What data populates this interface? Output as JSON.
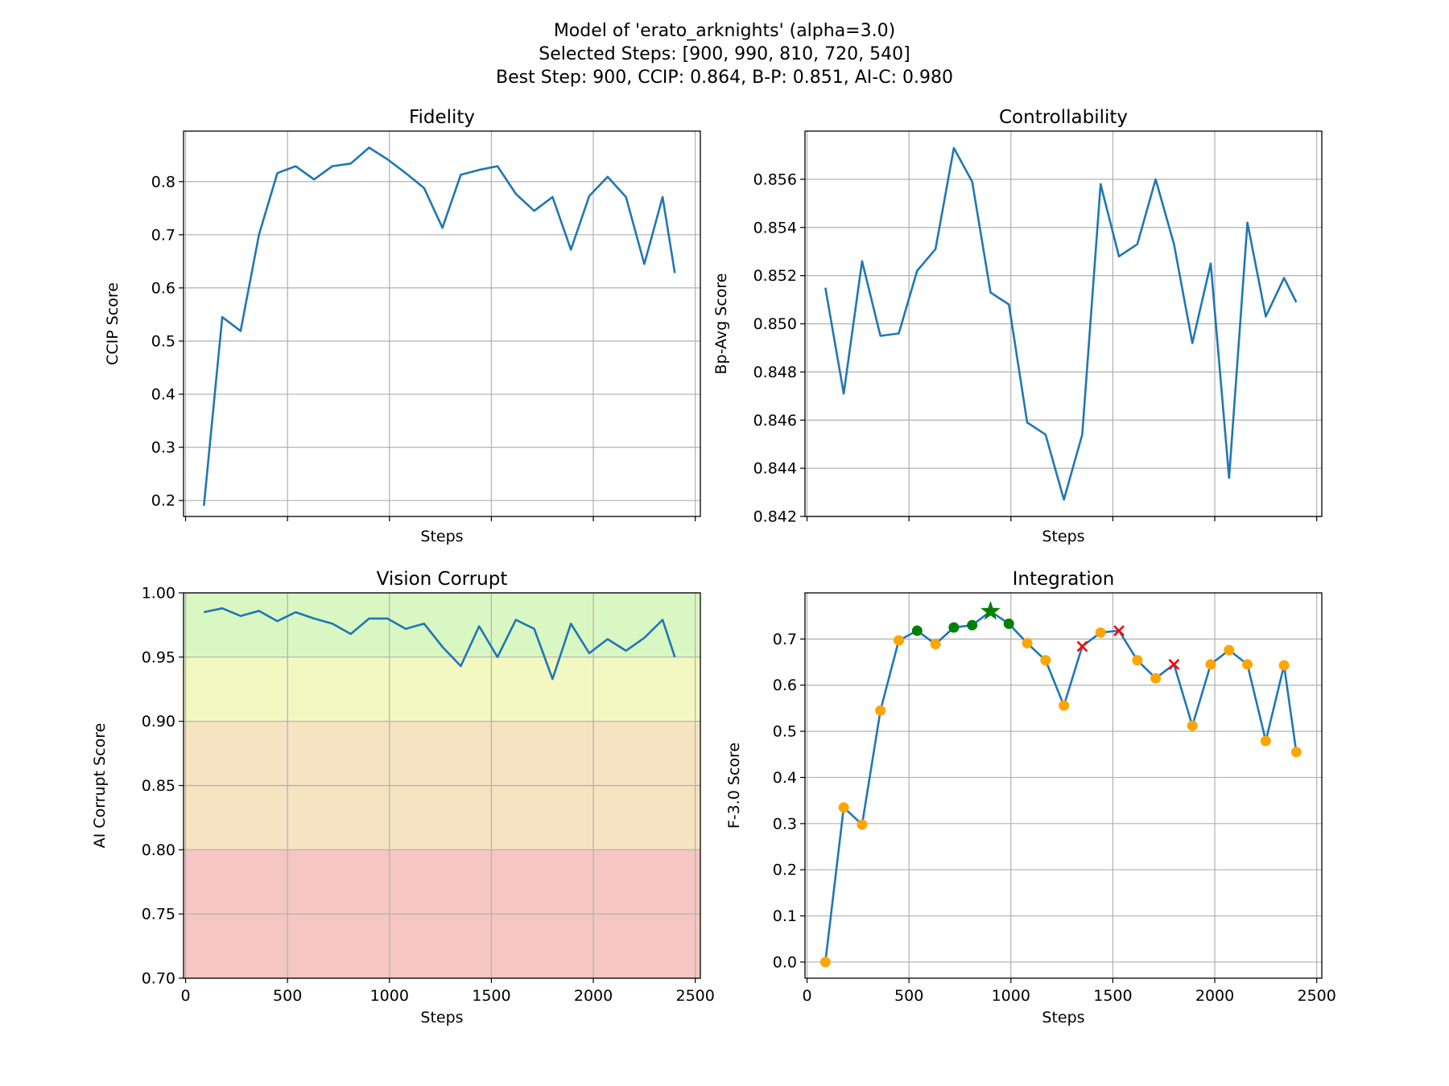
{
  "figure": {
    "title_lines": [
      "Model of 'erato_arknights' (alpha=3.0)",
      "Selected Steps: [900, 990, 810, 720, 540]",
      "Best Step: 900, CCIP: 0.864, B-P: 0.851, AI-C: 0.980"
    ]
  },
  "colors": {
    "line": "#1f77b4",
    "marker_default": "#ffa500",
    "marker_selected": "#008000",
    "marker_excluded": "#ff0000",
    "band_good": "#d9f7c3",
    "band_ok": "#f3f8c1",
    "band_warn": "#f5e3c2",
    "band_bad": "#f5c6c2"
  },
  "chart_data": [
    {
      "id": "fidelity",
      "type": "line",
      "title": "Fidelity",
      "xlabel": "Steps",
      "ylabel": "CCIP Score",
      "xlim": [
        -10,
        2525
      ],
      "ylim": [
        0.17,
        0.895
      ],
      "xticks": [
        0,
        500,
        1000,
        1500,
        2000,
        2500
      ],
      "show_xtick_labels": false,
      "yticks": [
        0.2,
        0.3,
        0.4,
        0.5,
        0.6,
        0.7,
        0.8
      ],
      "ytick_labels": [
        "0.2",
        "0.3",
        "0.4",
        "0.5",
        "0.6",
        "0.7",
        "0.8"
      ],
      "grid": true,
      "x": [
        90,
        180,
        270,
        360,
        450,
        540,
        630,
        720,
        810,
        900,
        990,
        1080,
        1170,
        1260,
        1350,
        1440,
        1530,
        1620,
        1710,
        1800,
        1890,
        1980,
        2070,
        2160,
        2250,
        2340,
        2400
      ],
      "y": [
        0.19,
        0.545,
        0.519,
        0.7,
        0.816,
        0.829,
        0.804,
        0.829,
        0.834,
        0.864,
        0.842,
        0.816,
        0.788,
        0.713,
        0.813,
        0.822,
        0.829,
        0.777,
        0.745,
        0.771,
        0.672,
        0.773,
        0.809,
        0.771,
        0.645,
        0.771,
        0.628
      ]
    },
    {
      "id": "controllability",
      "type": "line",
      "title": "Controllability",
      "xlabel": "Steps",
      "ylabel": "Bp-Avg Score",
      "xlim": [
        -10,
        2525
      ],
      "ylim": [
        0.842,
        0.858
      ],
      "xticks": [
        0,
        500,
        1000,
        1500,
        2000,
        2500
      ],
      "show_xtick_labels": false,
      "yticks": [
        0.842,
        0.844,
        0.846,
        0.848,
        0.85,
        0.852,
        0.854,
        0.856
      ],
      "ytick_labels": [
        "0.842",
        "0.844",
        "0.846",
        "0.848",
        "0.850",
        "0.852",
        "0.854",
        "0.856"
      ],
      "grid": true,
      "x": [
        90,
        180,
        270,
        360,
        450,
        540,
        630,
        720,
        810,
        900,
        990,
        1080,
        1170,
        1260,
        1350,
        1440,
        1530,
        1620,
        1710,
        1800,
        1890,
        1980,
        2070,
        2160,
        2250,
        2340,
        2400
      ],
      "y": [
        0.8515,
        0.8471,
        0.8526,
        0.8495,
        0.8496,
        0.8522,
        0.8531,
        0.8573,
        0.8559,
        0.8513,
        0.8508,
        0.8459,
        0.8454,
        0.8427,
        0.8454,
        0.8558,
        0.8528,
        0.8533,
        0.856,
        0.8533,
        0.8492,
        0.8525,
        0.8436,
        0.8542,
        0.8503,
        0.8519,
        0.8509
      ]
    },
    {
      "id": "vision-corrupt",
      "type": "line",
      "title": "Vision Corrupt",
      "xlabel": "Steps",
      "ylabel": "AI Corrupt Score",
      "xlim": [
        -10,
        2525
      ],
      "ylim": [
        0.7,
        1.0
      ],
      "xticks": [
        0,
        500,
        1000,
        1500,
        2000,
        2500
      ],
      "xtick_labels": [
        "0",
        "500",
        "1000",
        "1500",
        "2000",
        "2500"
      ],
      "show_xtick_labels": true,
      "yticks": [
        0.7,
        0.75,
        0.8,
        0.85,
        0.9,
        0.95,
        1.0
      ],
      "ytick_labels": [
        "0.70",
        "0.75",
        "0.80",
        "0.85",
        "0.90",
        "0.95",
        "1.00"
      ],
      "grid": true,
      "bands": [
        {
          "from": 0.95,
          "to": 1.0,
          "color_key": "band_good"
        },
        {
          "from": 0.9,
          "to": 0.95,
          "color_key": "band_ok"
        },
        {
          "from": 0.8,
          "to": 0.9,
          "color_key": "band_warn"
        },
        {
          "from": 0.7,
          "to": 0.8,
          "color_key": "band_bad"
        }
      ],
      "x": [
        90,
        180,
        270,
        360,
        450,
        540,
        630,
        720,
        810,
        900,
        990,
        1080,
        1170,
        1260,
        1350,
        1440,
        1530,
        1620,
        1710,
        1800,
        1890,
        1980,
        2070,
        2160,
        2250,
        2340,
        2400
      ],
      "y": [
        0.985,
        0.988,
        0.982,
        0.986,
        0.978,
        0.985,
        0.98,
        0.976,
        0.968,
        0.98,
        0.98,
        0.972,
        0.976,
        0.958,
        0.943,
        0.974,
        0.95,
        0.979,
        0.972,
        0.933,
        0.976,
        0.953,
        0.964,
        0.955,
        0.965,
        0.979,
        0.95
      ]
    },
    {
      "id": "integration",
      "type": "line",
      "title": "Integration",
      "xlabel": "Steps",
      "ylabel": "F-3.0 Score",
      "xlim": [
        -10,
        2525
      ],
      "ylim": [
        -0.035,
        0.8
      ],
      "xticks": [
        0,
        500,
        1000,
        1500,
        2000,
        2500
      ],
      "xtick_labels": [
        "0",
        "500",
        "1000",
        "1500",
        "2000",
        "2500"
      ],
      "show_xtick_labels": true,
      "yticks": [
        0.0,
        0.1,
        0.2,
        0.3,
        0.4,
        0.5,
        0.6,
        0.7
      ],
      "ytick_labels": [
        "0.0",
        "0.1",
        "0.2",
        "0.3",
        "0.4",
        "0.5",
        "0.6",
        "0.7"
      ],
      "grid": true,
      "x": [
        90,
        180,
        270,
        360,
        450,
        540,
        630,
        720,
        810,
        900,
        990,
        1080,
        1170,
        1260,
        1350,
        1440,
        1530,
        1620,
        1710,
        1800,
        1890,
        1980,
        2070,
        2160,
        2250,
        2340,
        2400
      ],
      "y": [
        0.0,
        0.335,
        0.298,
        0.545,
        0.697,
        0.718,
        0.689,
        0.725,
        0.73,
        0.76,
        0.733,
        0.691,
        0.654,
        0.556,
        0.684,
        0.714,
        0.718,
        0.654,
        0.615,
        0.645,
        0.512,
        0.645,
        0.676,
        0.645,
        0.479,
        0.643,
        0.455
      ],
      "markers": [
        "circle",
        "circle",
        "circle",
        "circle",
        "circle",
        "selected",
        "circle",
        "selected",
        "selected",
        "best",
        "selected",
        "circle",
        "circle",
        "circle",
        "cross",
        "circle",
        "cross",
        "circle",
        "circle",
        "cross",
        "circle",
        "circle",
        "circle",
        "circle",
        "circle",
        "circle",
        "circle"
      ]
    }
  ]
}
